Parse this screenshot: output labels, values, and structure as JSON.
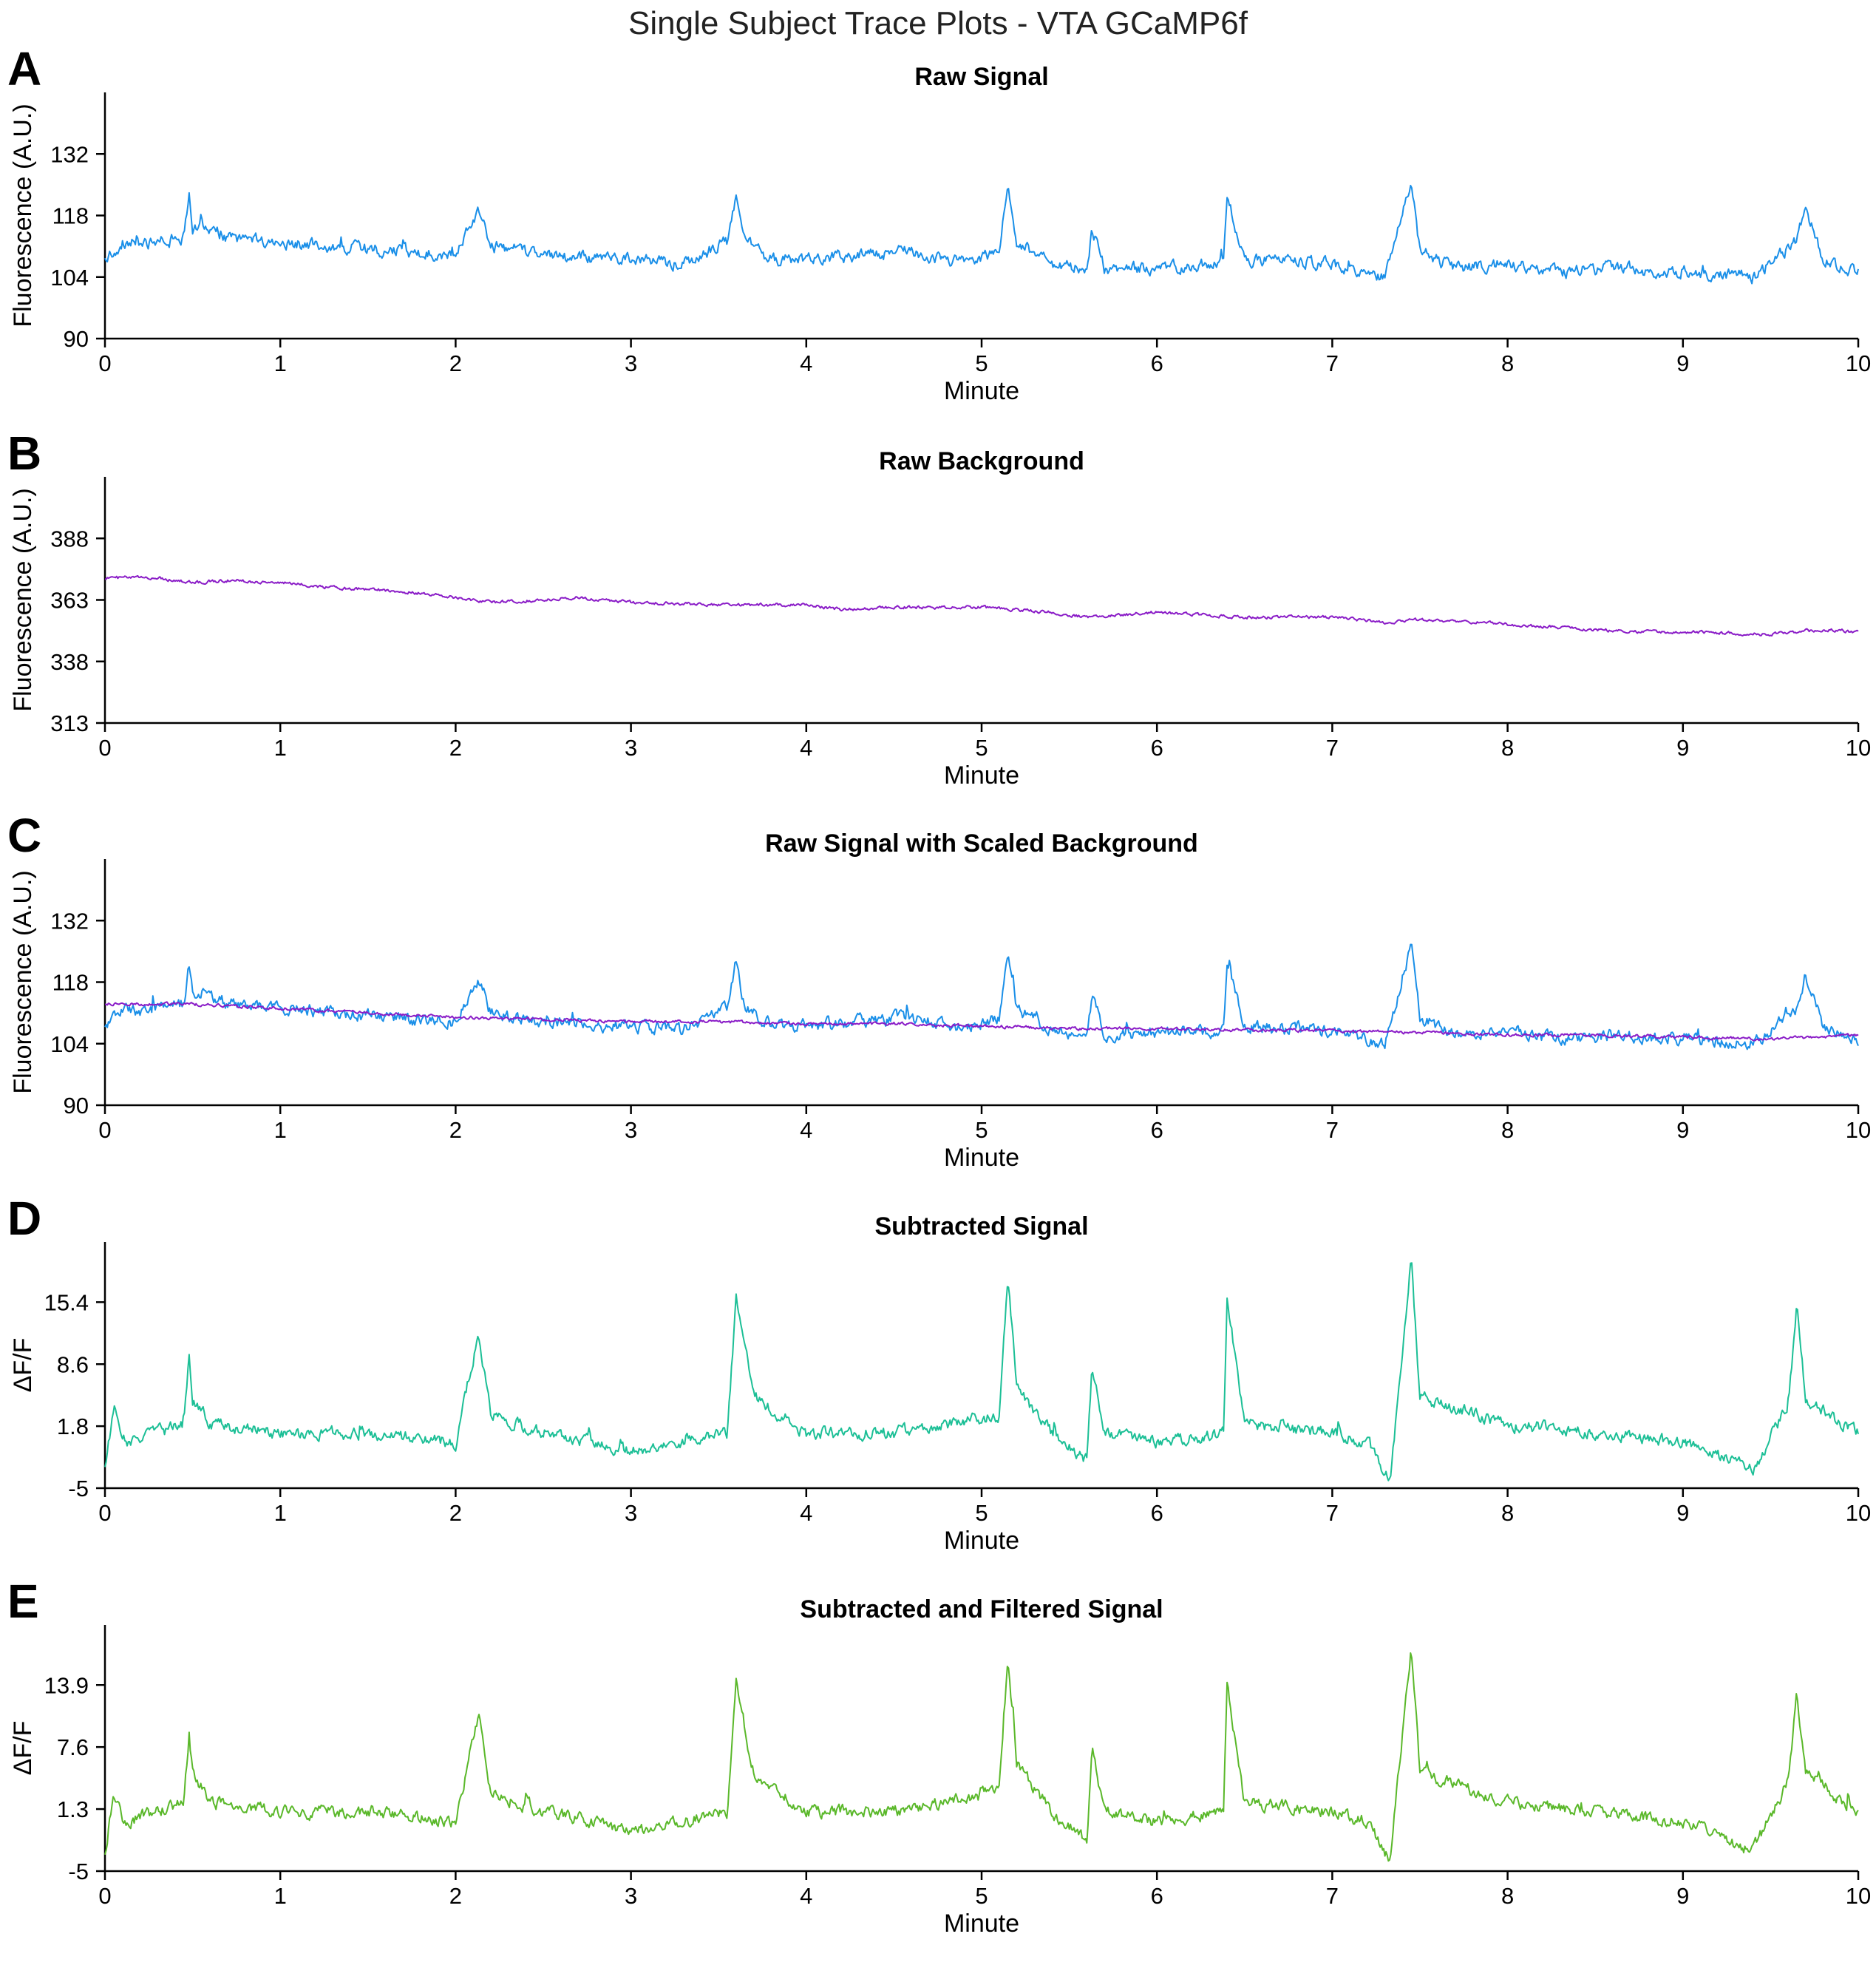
{
  "figure": {
    "title": "Single Subject Trace Plots - VTA GCaMP6f"
  },
  "colors": {
    "signal": "#1a8fe8",
    "background": "#8a1cc7",
    "subtracted": "#1cbf96",
    "filtered": "#5ab82a"
  },
  "chart_data": [
    {
      "panel_letter": "A",
      "type": "line",
      "title": "Raw Signal",
      "xlabel": "Minute",
      "ylabel": "Fluorescence (A.U.)",
      "xlim": [
        0,
        10
      ],
      "ylim": [
        90,
        146
      ],
      "xticks": [
        "0",
        "1",
        "2",
        "3",
        "4",
        "5",
        "6",
        "7",
        "8",
        "9",
        "10"
      ],
      "yticks": [
        "90",
        "104",
        "118",
        "132"
      ],
      "series": [
        {
          "color_key": "signal",
          "x": [
            0,
            0.05,
            0.1,
            0.2,
            0.3,
            0.45,
            0.48,
            0.5,
            0.55,
            0.7,
            1.0,
            1.3,
            1.6,
            2.0,
            2.13,
            2.2,
            2.5,
            2.8,
            3.0,
            3.3,
            3.55,
            3.6,
            3.65,
            3.8,
            4.0,
            4.3,
            4.6,
            4.9,
            5.1,
            5.15,
            5.2,
            5.4,
            5.6,
            5.63,
            5.7,
            6.0,
            6.38,
            6.4,
            6.5,
            7.0,
            7.3,
            7.45,
            7.5,
            7.7,
            8.0,
            8.3,
            8.6,
            9.0,
            9.4,
            9.65,
            9.7,
            9.8,
            10.0
          ],
          "y": [
            108,
            110,
            112,
            111,
            112,
            113,
            122,
            115,
            116,
            113,
            112,
            111,
            110,
            109,
            119,
            111,
            109,
            108,
            108,
            107,
            112,
            123,
            112,
            108,
            108,
            109,
            110,
            107,
            110,
            126,
            112,
            107,
            106,
            115,
            106,
            106,
            107,
            122,
            108,
            107,
            104,
            126,
            110,
            106,
            107,
            105,
            106,
            105,
            104,
            112,
            120,
            108,
            105
          ]
        }
      ]
    },
    {
      "panel_letter": "B",
      "type": "line",
      "title": "Raw Background",
      "xlabel": "Minute",
      "ylabel": "Fluorescence (A.U.)",
      "xlim": [
        0,
        10
      ],
      "ylim": [
        313,
        413
      ],
      "xticks": [
        "0",
        "1",
        "2",
        "3",
        "4",
        "5",
        "6",
        "7",
        "8",
        "9",
        "10"
      ],
      "yticks": [
        "313",
        "338",
        "363",
        "388"
      ],
      "series": [
        {
          "color_key": "background",
          "x": [
            0,
            0.3,
            0.5,
            0.7,
            1.0,
            1.3,
            1.6,
            1.9,
            2.2,
            2.5,
            2.7,
            3.0,
            3.5,
            4.0,
            4.2,
            4.5,
            5.0,
            5.4,
            5.6,
            5.8,
            6.0,
            6.5,
            7.0,
            7.3,
            7.5,
            7.8,
            8.0,
            8.5,
            8.7,
            9.0,
            9.5,
            9.8,
            10.0
          ],
          "y": [
            372,
            372,
            370,
            371,
            370,
            368,
            367,
            365,
            362,
            363,
            364,
            362,
            361,
            361,
            359,
            360,
            360,
            358,
            356,
            357,
            358,
            356,
            356,
            354,
            355,
            354,
            353,
            351,
            350,
            350,
            349,
            351,
            350
          ]
        }
      ]
    },
    {
      "panel_letter": "C",
      "type": "line",
      "title": "Raw Signal with Scaled Background",
      "xlabel": "Minute",
      "ylabel": "Fluorescence (A.U.)",
      "xlim": [
        0,
        10
      ],
      "ylim": [
        90,
        146
      ],
      "xticks": [
        "0",
        "1",
        "2",
        "3",
        "4",
        "5",
        "6",
        "7",
        "8",
        "9",
        "10"
      ],
      "yticks": [
        "90",
        "104",
        "118",
        "132"
      ],
      "series": [
        {
          "color_key": "signal",
          "x": [
            0,
            0.05,
            0.1,
            0.2,
            0.3,
            0.45,
            0.48,
            0.5,
            0.55,
            0.7,
            1.0,
            1.3,
            1.6,
            2.0,
            2.13,
            2.2,
            2.5,
            2.8,
            3.0,
            3.3,
            3.55,
            3.6,
            3.65,
            3.8,
            4.0,
            4.3,
            4.6,
            4.9,
            5.1,
            5.15,
            5.2,
            5.4,
            5.6,
            5.63,
            5.7,
            6.0,
            6.38,
            6.4,
            6.5,
            7.0,
            7.3,
            7.45,
            7.5,
            7.7,
            8.0,
            8.3,
            8.6,
            9.0,
            9.4,
            9.65,
            9.7,
            9.8,
            10.0
          ],
          "y": [
            108,
            110,
            112,
            111,
            112,
            113,
            122,
            115,
            116,
            113,
            112,
            111,
            110,
            109,
            119,
            111,
            109,
            108,
            108,
            107,
            112,
            123,
            112,
            108,
            108,
            109,
            110,
            107,
            110,
            126,
            112,
            107,
            106,
            115,
            106,
            106,
            107,
            122,
            108,
            107,
            104,
            126,
            110,
            106,
            107,
            105,
            106,
            105,
            104,
            112,
            120,
            108,
            105
          ]
        },
        {
          "color_key": "background",
          "x": [
            0,
            0.5,
            1.0,
            1.5,
            2.0,
            2.5,
            3.0,
            3.5,
            4.0,
            4.5,
            5.0,
            5.5,
            6.0,
            6.5,
            7.0,
            7.5,
            8.0,
            8.5,
            9.0,
            9.5,
            10.0
          ],
          "y": [
            113,
            113,
            112,
            111,
            110,
            109.5,
            109,
            109,
            108.5,
            108.5,
            108,
            107.5,
            107.5,
            107,
            107,
            106.5,
            106,
            106,
            105.5,
            105,
            106
          ]
        }
      ]
    },
    {
      "panel_letter": "D",
      "type": "line",
      "title": "Subtracted Signal",
      "xlabel": "Minute",
      "ylabel": "ΔF/F",
      "xlim": [
        0,
        10
      ],
      "ylim": [
        -5,
        22
      ],
      "xticks": [
        "0",
        "1",
        "2",
        "3",
        "4",
        "5",
        "6",
        "7",
        "8",
        "9",
        "10"
      ],
      "yticks": [
        "-5",
        "1.8",
        "8.6",
        "15.4"
      ],
      "series": [
        {
          "color_key": "subtracted",
          "x": [
            0,
            0.05,
            0.1,
            0.3,
            0.45,
            0.48,
            0.5,
            0.6,
            1.0,
            1.5,
            2.0,
            2.13,
            2.2,
            2.5,
            2.8,
            3.0,
            3.55,
            3.6,
            3.7,
            4.0,
            4.5,
            5.1,
            5.15,
            5.2,
            5.4,
            5.6,
            5.63,
            5.7,
            6.0,
            6.38,
            6.4,
            6.5,
            7.0,
            7.2,
            7.33,
            7.45,
            7.5,
            8.0,
            8.5,
            9.0,
            9.4,
            9.6,
            9.65,
            9.7,
            9.9,
            10.0
          ],
          "y": [
            -3,
            4,
            0,
            1,
            2,
            10,
            5,
            2,
            1,
            1,
            0,
            12,
            3,
            1,
            0,
            -1,
            1,
            16,
            5,
            1,
            1,
            3,
            18,
            6,
            1,
            -2,
            8,
            1,
            0,
            1,
            16,
            2,
            1,
            0,
            -4,
            20,
            5,
            2,
            1,
            0,
            -3,
            4,
            15,
            5,
            2,
            1
          ]
        }
      ]
    },
    {
      "panel_letter": "E",
      "type": "line",
      "title": "Subtracted and Filtered Signal",
      "xlabel": "Minute",
      "ylabel": "ΔF/F",
      "xlim": [
        0,
        10
      ],
      "ylim": [
        -5,
        20
      ],
      "xticks": [
        "0",
        "1",
        "2",
        "3",
        "4",
        "5",
        "6",
        "7",
        "8",
        "9",
        "10"
      ],
      "yticks": [
        "-5",
        "1.3",
        "7.6",
        "13.9"
      ],
      "series": [
        {
          "color_key": "filtered",
          "x": [
            0,
            0.05,
            0.1,
            0.3,
            0.45,
            0.48,
            0.5,
            0.6,
            1.0,
            1.5,
            2.0,
            2.13,
            2.2,
            2.5,
            2.8,
            3.0,
            3.55,
            3.6,
            3.7,
            4.0,
            4.5,
            5.1,
            5.15,
            5.2,
            5.4,
            5.6,
            5.63,
            5.7,
            6.0,
            6.38,
            6.4,
            6.5,
            7.0,
            7.2,
            7.33,
            7.45,
            7.5,
            8.0,
            8.5,
            9.0,
            9.4,
            9.6,
            9.65,
            9.7,
            9.9,
            10.0
          ],
          "y": [
            -3,
            3,
            0,
            1,
            2,
            9,
            5,
            2,
            1,
            1,
            0,
            11,
            3,
            1,
            0,
            -1,
            1,
            14,
            5,
            1,
            1,
            3,
            16,
            6,
            1,
            -2,
            8,
            1,
            0,
            1,
            14,
            2,
            1,
            0,
            -4,
            18,
            5,
            2,
            1,
            0,
            -3,
            4,
            13,
            5,
            2,
            1
          ]
        }
      ]
    }
  ]
}
